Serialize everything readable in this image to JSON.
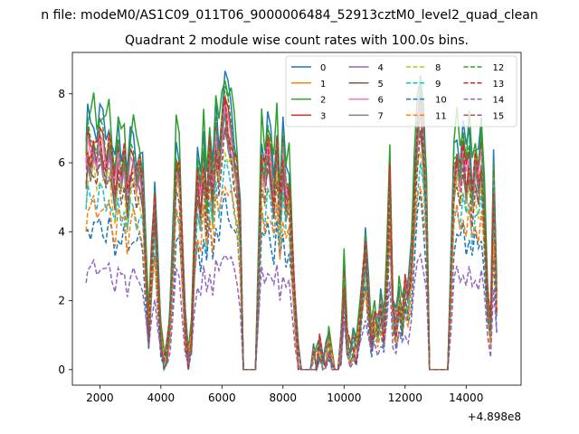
{
  "header": {
    "suptitle": "n file: modeM0/AS1C09_011T06_9000006484_52913cztM0_level2_quad_clean"
  },
  "chart_data": {
    "type": "line",
    "title": "Quadrant 2 module wise count rates with 100.0s bins.",
    "xlabel": "",
    "ylabel": "",
    "x_offset_label": "+4.898e8",
    "xlim": [
      1100,
      15800
    ],
    "ylim": [
      -0.45,
      9.2
    ],
    "x_ticks": [
      2000,
      4000,
      6000,
      8000,
      10000,
      12000,
      14000
    ],
    "y_ticks": [
      0,
      2,
      4,
      6,
      8
    ],
    "legend_position": "top-right",
    "legend_columns": 4,
    "grid": false,
    "profile": [
      [
        1550,
        1.0
      ],
      [
        1600,
        1.1
      ],
      [
        1700,
        1.06
      ],
      [
        1800,
        1.12
      ],
      [
        1900,
        1.05
      ],
      [
        2000,
        1.13
      ],
      [
        2100,
        1.08
      ],
      [
        2200,
        1.02
      ],
      [
        2300,
        1.12
      ],
      [
        2400,
        1.0
      ],
      [
        2500,
        0.88
      ],
      [
        2600,
        1.05
      ],
      [
        2700,
        0.96
      ],
      [
        2800,
        1.05
      ],
      [
        2900,
        0.85
      ],
      [
        3000,
        1.0
      ],
      [
        3100,
        1.03
      ],
      [
        3200,
        0.95
      ],
      [
        3300,
        0.98
      ],
      [
        3400,
        0.9
      ],
      [
        3500,
        0.55
      ],
      [
        3600,
        0.18
      ],
      [
        3700,
        0.55
      ],
      [
        3800,
        0.82
      ],
      [
        3900,
        0.45
      ],
      [
        4000,
        0.15
      ],
      [
        4100,
        0.03
      ],
      [
        4200,
        0.08
      ],
      [
        4300,
        0.25
      ],
      [
        4400,
        0.6
      ],
      [
        4500,
        1.02
      ],
      [
        4600,
        0.98
      ],
      [
        4700,
        0.6
      ],
      [
        4800,
        0.2
      ],
      [
        4900,
        0.05
      ],
      [
        5000,
        0.15
      ],
      [
        5100,
        0.65
      ],
      [
        5200,
        0.95
      ],
      [
        5300,
        0.8
      ],
      [
        5400,
        1.05
      ],
      [
        5500,
        0.8
      ],
      [
        5600,
        1.08
      ],
      [
        5700,
        0.85
      ],
      [
        5800,
        1.15
      ],
      [
        5900,
        1.0
      ],
      [
        6000,
        1.18
      ],
      [
        6100,
        1.3
      ],
      [
        6200,
        1.2
      ],
      [
        6300,
        1.15
      ],
      [
        6400,
        1.05
      ],
      [
        6500,
        0.95
      ],
      [
        6600,
        0.7
      ],
      [
        6700,
        0.0
      ],
      [
        6800,
        0.0
      ],
      [
        6900,
        0.0
      ],
      [
        7000,
        0.0
      ],
      [
        7100,
        0.0
      ],
      [
        7200,
        0.5
      ],
      [
        7300,
        1.05
      ],
      [
        7400,
        0.95
      ],
      [
        7500,
        1.1
      ],
      [
        7600,
        1.0
      ],
      [
        7700,
        0.85
      ],
      [
        7800,
        1.1
      ],
      [
        7900,
        0.8
      ],
      [
        8000,
        1.05
      ],
      [
        8100,
        0.85
      ],
      [
        8200,
        0.9
      ],
      [
        8300,
        0.6
      ],
      [
        8400,
        0.3
      ],
      [
        8500,
        0.05
      ],
      [
        8600,
        0.0
      ],
      [
        8700,
        0.0
      ],
      [
        8800,
        0.0
      ],
      [
        8900,
        0.0
      ],
      [
        9000,
        0.06
      ],
      [
        9100,
        0.03
      ],
      [
        9200,
        0.12
      ],
      [
        9300,
        0.02
      ],
      [
        9400,
        0.05
      ],
      [
        9500,
        0.14
      ],
      [
        9600,
        0.03
      ],
      [
        9700,
        0.0
      ],
      [
        9800,
        0.0
      ],
      [
        9900,
        0.1
      ],
      [
        10000,
        0.45
      ],
      [
        10100,
        0.15
      ],
      [
        10200,
        0.08
      ],
      [
        10300,
        0.12
      ],
      [
        10400,
        0.1
      ],
      [
        10500,
        0.2
      ],
      [
        10600,
        0.4
      ],
      [
        10700,
        0.6
      ],
      [
        10800,
        0.35
      ],
      [
        10900,
        0.15
      ],
      [
        11000,
        0.25
      ],
      [
        11100,
        0.2
      ],
      [
        11200,
        0.3
      ],
      [
        11300,
        0.2
      ],
      [
        11400,
        0.45
      ],
      [
        11500,
        0.95
      ],
      [
        11600,
        0.3
      ],
      [
        11700,
        0.2
      ],
      [
        11800,
        0.35
      ],
      [
        11900,
        0.25
      ],
      [
        12000,
        0.4
      ],
      [
        12100,
        0.35
      ],
      [
        12200,
        0.5
      ],
      [
        12300,
        0.85
      ],
      [
        12400,
        1.15
      ],
      [
        12500,
        1.3
      ],
      [
        12600,
        1.1
      ],
      [
        12700,
        0.8
      ],
      [
        12800,
        0.0
      ],
      [
        12900,
        0.0
      ],
      [
        13000,
        0.0
      ],
      [
        13100,
        0.0
      ],
      [
        13200,
        0.0
      ],
      [
        13300,
        0.0
      ],
      [
        13400,
        0.0
      ],
      [
        13500,
        0.45
      ],
      [
        13600,
        0.95
      ],
      [
        13700,
        1.05
      ],
      [
        13800,
        0.95
      ],
      [
        13900,
        1.08
      ],
      [
        14000,
        0.92
      ],
      [
        14100,
        1.05
      ],
      [
        14200,
        0.85
      ],
      [
        14300,
        1.0
      ],
      [
        14400,
        0.92
      ],
      [
        14500,
        1.05
      ],
      [
        14600,
        0.75
      ],
      [
        14700,
        0.35
      ],
      [
        14800,
        0.2
      ],
      [
        14900,
        0.9
      ],
      [
        15000,
        0.35
      ]
    ],
    "series": [
      {
        "name": "0",
        "color": "#1f77b4",
        "dash": "solid",
        "level": 6.6
      },
      {
        "name": "1",
        "color": "#ff7f0e",
        "dash": "solid",
        "level": 5.9
      },
      {
        "name": "2",
        "color": "#2ca02c",
        "dash": "solid",
        "level": 6.8
      },
      {
        "name": "3",
        "color": "#d62728",
        "dash": "solid",
        "level": 6.0
      },
      {
        "name": "4",
        "color": "#9467bd",
        "dash": "solid",
        "level": 5.7
      },
      {
        "name": "5",
        "color": "#8c564b",
        "dash": "solid",
        "level": 5.6
      },
      {
        "name": "6",
        "color": "#e377c2",
        "dash": "solid",
        "level": 5.8
      },
      {
        "name": "7",
        "color": "#7f7f7f",
        "dash": "solid",
        "level": 5.5
      },
      {
        "name": "8",
        "color": "#bcbd22",
        "dash": "dashed",
        "level": 5.1
      },
      {
        "name": "9",
        "color": "#17becf",
        "dash": "dashed",
        "level": 4.6
      },
      {
        "name": "10",
        "color": "#1f77b4",
        "dash": "dashed",
        "level": 3.8
      },
      {
        "name": "11",
        "color": "#ff7f0e",
        "dash": "dashed",
        "level": 4.3
      },
      {
        "name": "12",
        "color": "#2ca02c",
        "dash": "dashed",
        "level": 6.2
      },
      {
        "name": "13",
        "color": "#d62728",
        "dash": "dashed",
        "level": 5.9
      },
      {
        "name": "14",
        "color": "#9467bd",
        "dash": "dashed",
        "level": 2.7
      },
      {
        "name": "15",
        "color": "#8c564b",
        "dash": "dashed",
        "level": 5.3
      }
    ]
  }
}
